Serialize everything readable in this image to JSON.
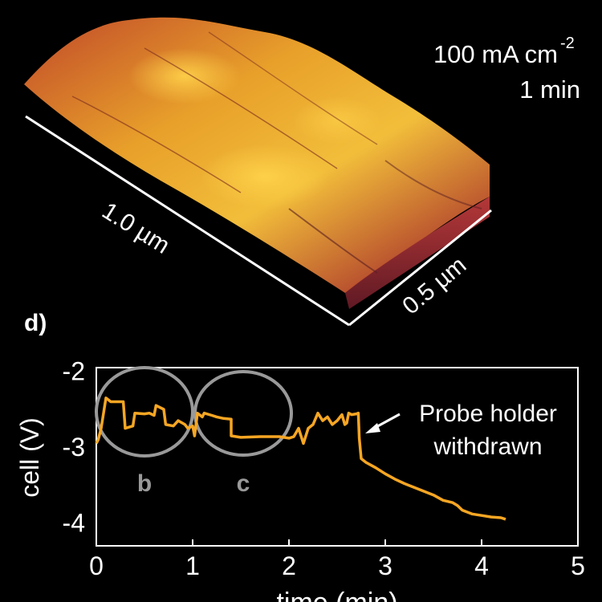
{
  "afm": {
    "condition_current": "100 mA cm",
    "condition_current_exp": "-2",
    "condition_time": "1 min",
    "scale_x": "1.0 µm",
    "scale_y": "0.5 µm"
  },
  "panel_label": "d)",
  "chart_data": {
    "type": "line",
    "title": "",
    "xlabel": "time (min)",
    "ylabel": "cell (V)",
    "xlim": [
      0,
      5
    ],
    "ylim": [
      -4.3,
      -1.95
    ],
    "xticks": [
      "0",
      "1",
      "2",
      "3",
      "4",
      "5"
    ],
    "yticks": [
      "-2",
      "-3",
      "-4"
    ],
    "grid": false,
    "series": [
      {
        "color": "#f6a623",
        "x": [
          0.0,
          0.02,
          0.05,
          0.1,
          0.15,
          0.28,
          0.3,
          0.38,
          0.4,
          0.5,
          0.55,
          0.6,
          0.62,
          0.7,
          0.72,
          0.8,
          0.85,
          0.92,
          0.95,
          1.0,
          1.02,
          1.05,
          1.1,
          1.12,
          1.2,
          1.25,
          1.32,
          1.4,
          1.4,
          1.5,
          1.7,
          1.9,
          2.0,
          2.05,
          2.1,
          2.15,
          2.2,
          2.25,
          2.3,
          2.35,
          2.4,
          2.45,
          2.5,
          2.55,
          2.58,
          2.6,
          2.62,
          2.65,
          2.7,
          2.72,
          2.73,
          2.75,
          2.8,
          2.9,
          3.0,
          3.1,
          3.2,
          3.3,
          3.4,
          3.5,
          3.6,
          3.7,
          3.75,
          3.8,
          3.9,
          4.0,
          4.1,
          4.2,
          4.25
        ],
        "y": [
          -2.95,
          -2.9,
          -2.75,
          -2.35,
          -2.4,
          -2.4,
          -2.75,
          -2.72,
          -2.55,
          -2.56,
          -2.55,
          -2.58,
          -2.45,
          -2.5,
          -2.7,
          -2.72,
          -2.65,
          -2.7,
          -2.75,
          -2.72,
          -2.85,
          -2.55,
          -2.6,
          -2.55,
          -2.58,
          -2.6,
          -2.62,
          -2.63,
          -2.85,
          -2.87,
          -2.86,
          -2.86,
          -2.88,
          -2.86,
          -2.75,
          -2.95,
          -2.75,
          -2.7,
          -2.55,
          -2.65,
          -2.6,
          -2.7,
          -2.65,
          -2.57,
          -2.7,
          -2.68,
          -2.55,
          -2.57,
          -2.56,
          -2.55,
          -2.88,
          -3.15,
          -3.2,
          -3.27,
          -3.35,
          -3.42,
          -3.48,
          -3.53,
          -3.58,
          -3.63,
          -3.7,
          -3.73,
          -3.77,
          -3.83,
          -3.88,
          -3.9,
          -3.92,
          -3.93,
          -3.95
        ]
      }
    ],
    "annotations": {
      "circle_b": "b",
      "circle_c": "c",
      "arrow_text_line1": "Probe holder",
      "arrow_text_line2": "withdrawn"
    }
  }
}
